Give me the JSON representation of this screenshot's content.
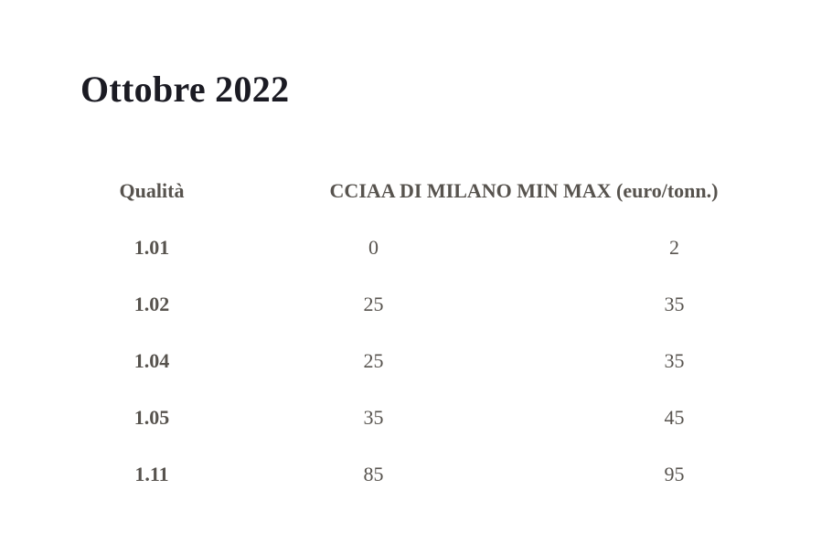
{
  "page_title": "Ottobre 2022",
  "table": {
    "headers": {
      "quality": "Qualità",
      "market": "CCIAA DI MILANO MIN MAX (euro/tonn.)"
    },
    "rows": [
      {
        "quality": "1.01",
        "min": "0",
        "max": "2"
      },
      {
        "quality": "1.02",
        "min": "25",
        "max": "35"
      },
      {
        "quality": "1.04",
        "min": "25",
        "max": "35"
      },
      {
        "quality": "1.05",
        "min": "35",
        "max": "45"
      },
      {
        "quality": "1.11",
        "min": "85",
        "max": "95"
      }
    ]
  },
  "colors": {
    "background": "#ffffff",
    "title_text": "#1b1b23",
    "table_text": "#57534e"
  }
}
